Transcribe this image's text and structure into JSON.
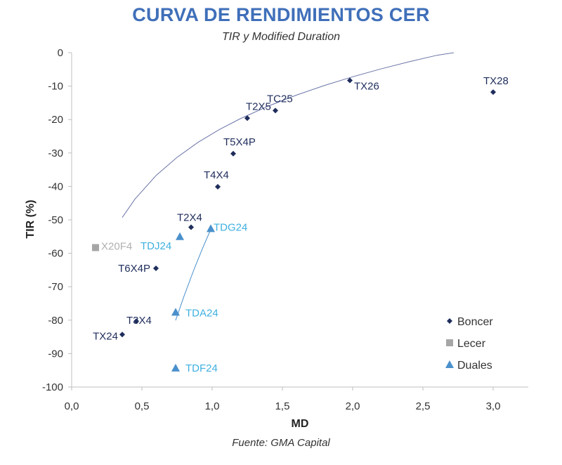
{
  "chart_data": {
    "type": "scatter",
    "title": "CURVA DE RENDIMIENTOS CER",
    "subtitle": "TIR y Modified Duration",
    "xlabel": "MD",
    "ylabel": "TIR (%)",
    "source": "Fuente: GMA Capital",
    "xlim": [
      0,
      3.25
    ],
    "ylim": [
      -100,
      0
    ],
    "xticks": [
      0,
      0.5,
      1.0,
      1.5,
      2.0,
      2.5,
      3.0
    ],
    "xtick_labels": [
      "0,0",
      "0,5",
      "1,0",
      "1,5",
      "2,0",
      "2,5",
      "3,0"
    ],
    "yticks": [
      0,
      -10,
      -20,
      -30,
      -40,
      -50,
      -60,
      -70,
      -80,
      -90,
      -100
    ],
    "ytick_labels": [
      "0",
      "-10",
      "-20",
      "-30",
      "-40",
      "-50",
      "-60",
      "-70",
      "-80",
      "-90",
      "-100"
    ],
    "legend_position": "bottom-right",
    "series": [
      {
        "name": "Boncer",
        "color": "#1f2d5c",
        "marker": "diamond",
        "points": [
          {
            "label": "TX24",
            "x": 0.36,
            "y": -84.3
          },
          {
            "label": "T3X4",
            "x": 0.46,
            "y": -80.3
          },
          {
            "label": "T6X4P",
            "x": 0.6,
            "y": -64.5
          },
          {
            "label": "T2X4",
            "x": 0.85,
            "y": -52.2
          },
          {
            "label": "T4X4",
            "x": 1.04,
            "y": -40.1
          },
          {
            "label": "T5X4P",
            "x": 1.15,
            "y": -30.2
          },
          {
            "label": "T2X5",
            "x": 1.25,
            "y": -19.6
          },
          {
            "label": "TC25",
            "x": 1.45,
            "y": -17.3
          },
          {
            "label": "TX26",
            "x": 1.98,
            "y": -8.3
          },
          {
            "label": "TX28",
            "x": 3.0,
            "y": -11.8
          }
        ]
      },
      {
        "name": "Lecer",
        "color": "#a6a6a6",
        "marker": "square",
        "points": [
          {
            "label": "X20F4",
            "x": 0.17,
            "y": -58.3
          }
        ]
      },
      {
        "name": "Duales",
        "color": "#4a90cc",
        "marker": "triangle",
        "points": [
          {
            "label": "TDJ24",
            "x": 0.77,
            "y": -55.0
          },
          {
            "label": "TDG24",
            "x": 0.99,
            "y": -52.6
          },
          {
            "label": "TDA24",
            "x": 0.74,
            "y": -77.6
          },
          {
            "label": "TDF24",
            "x": 0.74,
            "y": -94.3
          }
        ]
      }
    ],
    "trendlines": [
      {
        "name": "Boncer trend",
        "color": "#6b75a8",
        "x_from": 0.36,
        "x_to": 2.72,
        "points_x": [
          0.36,
          0.45,
          0.6,
          0.75,
          0.9,
          1.05,
          1.2,
          1.4,
          1.6,
          1.8,
          2.0,
          2.2,
          2.4,
          2.6,
          2.72
        ]
      },
      {
        "name": "Duales trend",
        "color": "#4a90cc",
        "points_x": [
          0.74,
          0.8,
          0.87,
          0.93,
          0.99
        ]
      }
    ]
  }
}
